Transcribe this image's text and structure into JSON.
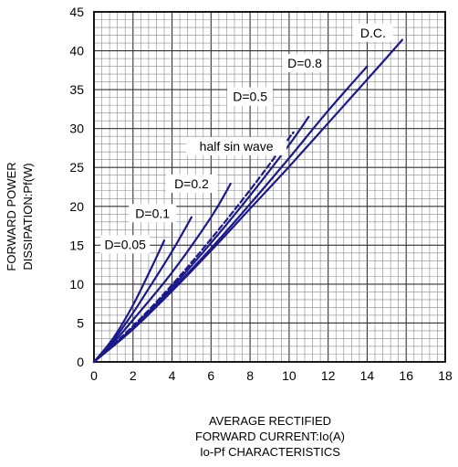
{
  "chart_data": {
    "type": "line",
    "title": "Io-Pf CHARACTERISTICS",
    "xlabel_lines": [
      "AVERAGE RECTIFIED",
      "FORWARD CURRENT:Io(A)"
    ],
    "ylabel_lines": [
      "FORWARD POWER",
      "DISSIPATION:Pf(W)"
    ],
    "xlim": [
      0,
      18
    ],
    "ylim": [
      0,
      45
    ],
    "x_ticks": [
      0,
      2,
      4,
      6,
      8,
      10,
      12,
      14,
      16,
      18
    ],
    "y_ticks": [
      0,
      5,
      10,
      15,
      20,
      25,
      30,
      35,
      40,
      45
    ],
    "grid": true,
    "line_color": "#1a1a8c",
    "series": [
      {
        "name": "D=0.05",
        "dashed": false,
        "x": [
          0,
          1,
          2,
          3,
          3.6
        ],
        "y": [
          0,
          3.1,
          7.3,
          12.4,
          15.6
        ]
      },
      {
        "name": "D=0.1",
        "dashed": false,
        "x": [
          0,
          1,
          2,
          3,
          4,
          5
        ],
        "y": [
          0,
          2.8,
          6.3,
          10.2,
          14.2,
          18.6
        ]
      },
      {
        "name": "D=0.2",
        "dashed": false,
        "x": [
          0,
          1,
          2,
          4,
          6,
          7
        ],
        "y": [
          0,
          2.5,
          5.4,
          11.5,
          18.6,
          22.9
        ]
      },
      {
        "name": "half sin wave",
        "dashed": true,
        "x": [
          0,
          2,
          4,
          6,
          8,
          10,
          10.2
        ],
        "y": [
          0,
          4.6,
          9.9,
          15.8,
          22.1,
          28.8,
          29.4
        ]
      },
      {
        "name": "D=0.5",
        "dashed": false,
        "x": [
          0,
          2,
          4,
          6,
          8,
          10,
          11
        ],
        "y": [
          0,
          4.4,
          9.6,
          15.3,
          21.4,
          27.9,
          31.5
        ]
      },
      {
        "name": "D=0.8",
        "dashed": false,
        "x": [
          0,
          2,
          4,
          6,
          8,
          10,
          12,
          14
        ],
        "y": [
          0,
          4.3,
          9.3,
          14.6,
          20.3,
          26.2,
          32.3,
          38.0
        ]
      },
      {
        "name": "D.C.",
        "dashed": false,
        "x": [
          0,
          2,
          4,
          6,
          8,
          10,
          12,
          14,
          15.8
        ],
        "y": [
          0,
          4.2,
          9.1,
          14.3,
          19.7,
          25.1,
          30.7,
          36.3,
          41.4
        ]
      }
    ]
  }
}
